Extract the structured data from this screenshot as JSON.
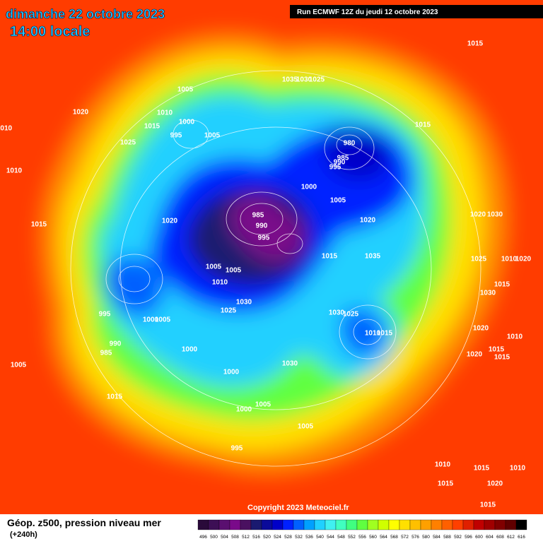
{
  "header": {
    "date": "dimanche 22 octobre 2023",
    "time": "14:00 locale",
    "run": "Run ECMWF 12Z du jeudi 12 octobre 2023"
  },
  "copyright": "Copyright 2023 Meteociel.fr",
  "legend": {
    "title": "Géop. z500, pression niveau mer",
    "lead": "(+240h)",
    "colorbar": {
      "ticks": [
        496,
        500,
        504,
        508,
        512,
        516,
        520,
        524,
        528,
        532,
        536,
        540,
        544,
        548,
        552,
        556,
        560,
        564,
        568,
        572,
        576,
        580,
        584,
        588,
        592,
        596,
        600,
        604,
        608,
        612,
        616
      ],
      "colors": [
        "#2a0a3a",
        "#3d0f55",
        "#5a0f70",
        "#7a0a8a",
        "#4a1060",
        "#1a1a70",
        "#0a0a9a",
        "#0000c8",
        "#0020ff",
        "#0060ff",
        "#00a0ff",
        "#20d0ff",
        "#40f0f0",
        "#40ffc0",
        "#40ff80",
        "#60ff40",
        "#a0ff20",
        "#d0ff00",
        "#ffff00",
        "#ffe000",
        "#ffc000",
        "#ffa000",
        "#ff8000",
        "#ff6000",
        "#ff4000",
        "#e02000",
        "#c00000",
        "#a00000",
        "#800000",
        "#600000",
        "#000000"
      ]
    }
  },
  "map": {
    "isobar_labels": [
      1015,
      1005,
      1010,
      1000,
      1015,
      995,
      1005,
      1020,
      1010,
      1025,
      1010,
      1015,
      1020,
      985,
      990,
      995,
      980,
      985,
      990,
      995,
      1000,
      1005,
      1020,
      1015,
      1035,
      1005,
      1005,
      1010,
      1030,
      1025,
      995,
      1000,
      1005,
      1030,
      1025,
      1010,
      1015,
      1000,
      990,
      985,
      1005,
      1030,
      1000,
      1015,
      1005,
      1000,
      1005,
      995,
      1015,
      1035,
      1030,
      1025,
      1020,
      1030,
      1025,
      1010,
      1020,
      1015,
      1030,
      1020,
      1010,
      1015,
      1020,
      1015,
      1010,
      1015,
      1010,
      1015,
      1020,
      1015
    ]
  }
}
